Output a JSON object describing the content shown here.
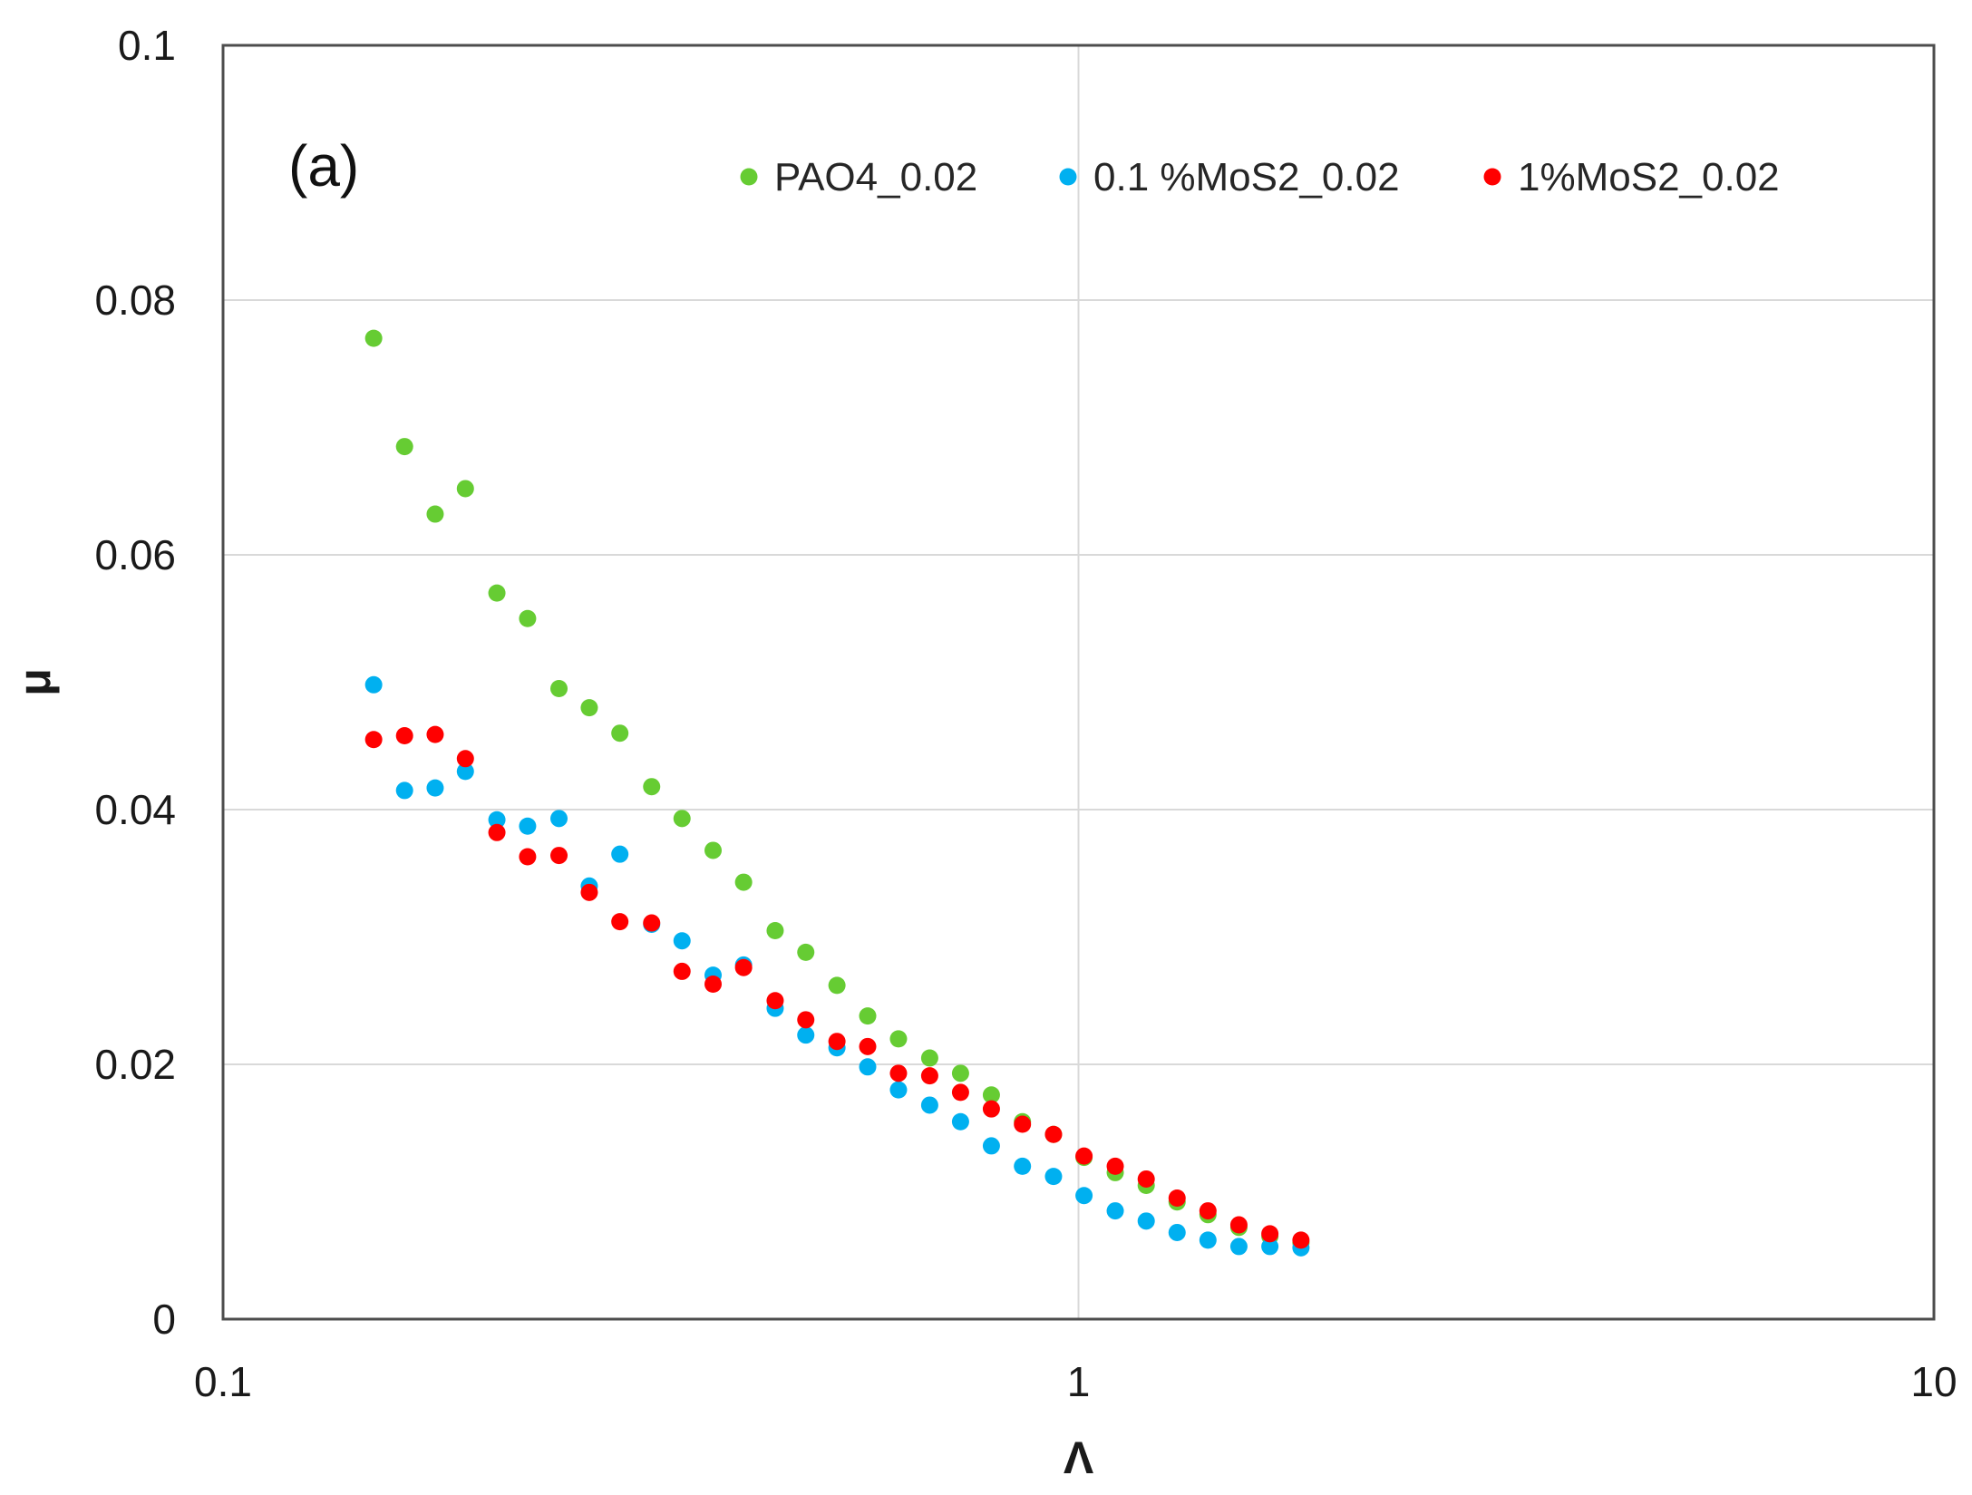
{
  "chart_data": {
    "type": "scatter",
    "panel_label": "(a)",
    "xlabel": "Λ",
    "ylabel": "μ",
    "xscale": "log",
    "xlim": [
      0.1,
      10
    ],
    "ylim": [
      0,
      0.1
    ],
    "x_ticks": [
      {
        "value": 0.1,
        "label": "0.1"
      },
      {
        "value": 1,
        "label": "1"
      },
      {
        "value": 10,
        "label": "10"
      }
    ],
    "y_ticks": [
      {
        "value": 0,
        "label": "0"
      },
      {
        "value": 0.02,
        "label": "0.02"
      },
      {
        "value": 0.04,
        "label": "0.04"
      },
      {
        "value": 0.06,
        "label": "0.06"
      },
      {
        "value": 0.08,
        "label": "0.08"
      },
      {
        "value": 0.1,
        "label": "0.1"
      }
    ],
    "grid": true,
    "legend_position": "top",
    "series": [
      {
        "name": "PAO4_0.02",
        "color": "#66cc33",
        "x": [
          0.15,
          0.163,
          0.177,
          0.192,
          0.209,
          0.227,
          0.247,
          0.268,
          0.291,
          0.317,
          0.344,
          0.374,
          0.406,
          0.442,
          0.48,
          0.522,
          0.567,
          0.616,
          0.67,
          0.728,
          0.791,
          0.86,
          0.935,
          1.015,
          1.104,
          1.2,
          1.304,
          1.417,
          1.54,
          1.674,
          1.82
        ],
        "y": [
          0.077,
          0.0685,
          0.0632,
          0.0652,
          0.057,
          0.055,
          0.0495,
          0.048,
          0.046,
          0.0418,
          0.0393,
          0.0368,
          0.0343,
          0.0305,
          0.0288,
          0.0262,
          0.0238,
          0.022,
          0.0205,
          0.0193,
          0.0176,
          0.0155,
          0.0145,
          0.0127,
          0.0115,
          0.0105,
          0.0092,
          0.0082,
          0.0072,
          0.0065,
          0.006
        ]
      },
      {
        "name": "0.1 %MoS2_0.02",
        "color": "#00b0f0",
        "x": [
          0.15,
          0.163,
          0.177,
          0.192,
          0.209,
          0.227,
          0.247,
          0.268,
          0.291,
          0.317,
          0.344,
          0.374,
          0.406,
          0.442,
          0.48,
          0.522,
          0.567,
          0.616,
          0.67,
          0.728,
          0.791,
          0.86,
          0.935,
          1.015,
          1.104,
          1.2,
          1.304,
          1.417,
          1.54,
          1.674,
          1.82
        ],
        "y": [
          0.0498,
          0.0415,
          0.0417,
          0.043,
          0.0392,
          0.0387,
          0.0393,
          0.034,
          0.0365,
          0.031,
          0.0297,
          0.027,
          0.0278,
          0.0244,
          0.0223,
          0.0213,
          0.0198,
          0.018,
          0.0168,
          0.0155,
          0.0136,
          0.012,
          0.0112,
          0.0097,
          0.0085,
          0.0077,
          0.0068,
          0.0062,
          0.0057,
          0.0057,
          0.0056
        ]
      },
      {
        "name": "1%MoS2_0.02",
        "color": "#ff0000",
        "x": [
          0.15,
          0.163,
          0.177,
          0.192,
          0.209,
          0.227,
          0.247,
          0.268,
          0.291,
          0.317,
          0.344,
          0.374,
          0.406,
          0.442,
          0.48,
          0.522,
          0.567,
          0.616,
          0.67,
          0.728,
          0.791,
          0.86,
          0.935,
          1.015,
          1.104,
          1.2,
          1.304,
          1.417,
          1.54,
          1.674,
          1.82
        ],
        "y": [
          0.0455,
          0.0458,
          0.0459,
          0.044,
          0.0382,
          0.0363,
          0.0364,
          0.0335,
          0.0312,
          0.0311,
          0.0273,
          0.0263,
          0.0276,
          0.025,
          0.0235,
          0.0218,
          0.0214,
          0.0193,
          0.0191,
          0.0178,
          0.0165,
          0.0153,
          0.0145,
          0.0128,
          0.012,
          0.011,
          0.0095,
          0.0085,
          0.0074,
          0.0067,
          0.0062
        ]
      }
    ]
  }
}
